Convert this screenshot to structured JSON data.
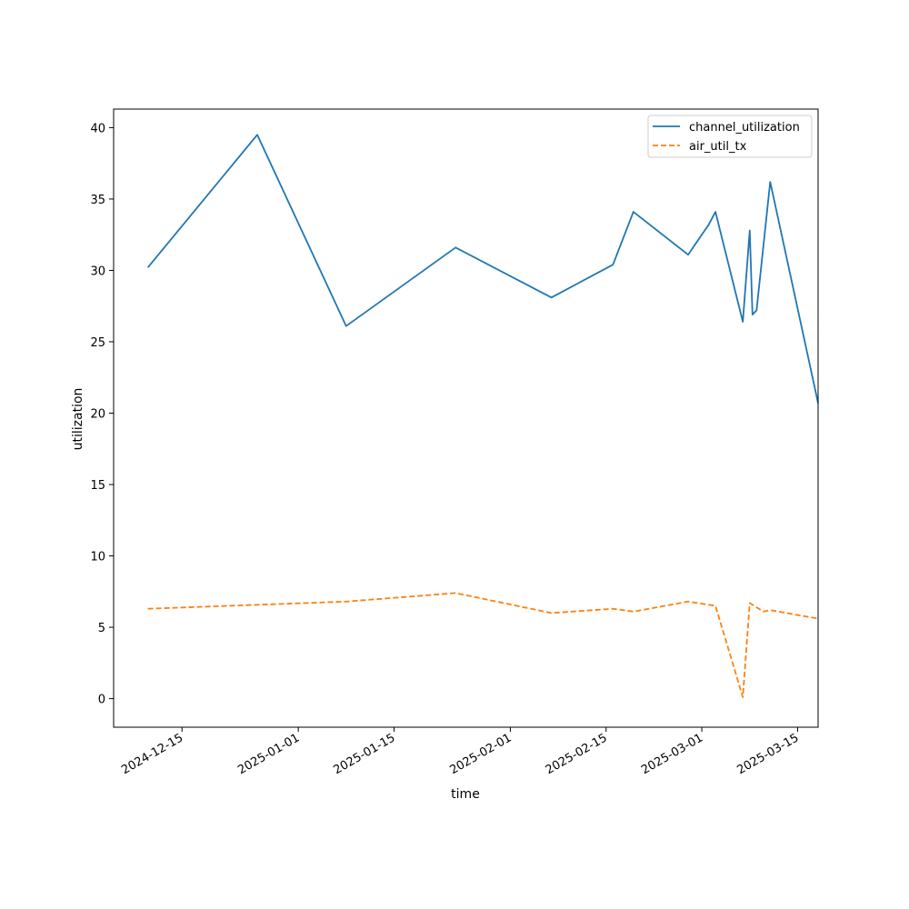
{
  "chart_data": {
    "type": "line",
    "title": "",
    "xlabel": "time",
    "ylabel": "utilization",
    "x_ticks": [
      "2024-12-15",
      "2025-01-01",
      "2025-01-15",
      "2025-02-01",
      "2025-02-15",
      "2025-03-01",
      "2025-03-15"
    ],
    "y_ticks": [
      0,
      5,
      10,
      15,
      20,
      25,
      30,
      35,
      40
    ],
    "xlim": [
      "2024-12-05",
      "2025-03-18"
    ],
    "ylim": [
      -2,
      41.3
    ],
    "grid": false,
    "legend_position": "top-right",
    "series": [
      {
        "name": "channel_utilization",
        "color": "#1f77b4",
        "style": "solid",
        "points": [
          {
            "x": "2024-12-10",
            "y": 30.2
          },
          {
            "x": "2024-12-26",
            "y": 39.5
          },
          {
            "x": "2025-01-08",
            "y": 26.1
          },
          {
            "x": "2025-01-24",
            "y": 31.6
          },
          {
            "x": "2025-02-07",
            "y": 28.1
          },
          {
            "x": "2025-02-16",
            "y": 30.4
          },
          {
            "x": "2025-02-19",
            "y": 34.1
          },
          {
            "x": "2025-02-27",
            "y": 31.1
          },
          {
            "x": "2025-03-02",
            "y": 33.2
          },
          {
            "x": "2025-03-03",
            "y": 34.1
          },
          {
            "x": "2025-03-07",
            "y": 26.4
          },
          {
            "x": "2025-03-08",
            "y": 32.8
          },
          {
            "x": "2025-03-08",
            "y": 26.9
          },
          {
            "x": "2025-03-09",
            "y": 27.2
          },
          {
            "x": "2025-03-11",
            "y": 36.2
          },
          {
            "x": "2025-03-18",
            "y": 20.7
          }
        ]
      },
      {
        "name": "air_util_tx",
        "color": "#ff7f0e",
        "style": "dashed",
        "points": [
          {
            "x": "2024-12-10",
            "y": 6.3
          },
          {
            "x": "2025-01-08",
            "y": 6.8
          },
          {
            "x": "2025-01-24",
            "y": 7.4
          },
          {
            "x": "2025-02-07",
            "y": 6.0
          },
          {
            "x": "2025-02-16",
            "y": 6.3
          },
          {
            "x": "2025-02-19",
            "y": 6.1
          },
          {
            "x": "2025-02-27",
            "y": 6.8
          },
          {
            "x": "2025-03-03",
            "y": 6.5
          },
          {
            "x": "2025-03-07",
            "y": 0.1
          },
          {
            "x": "2025-03-08",
            "y": 6.7
          },
          {
            "x": "2025-03-09",
            "y": 6.4
          },
          {
            "x": "2025-03-10",
            "y": 6.1
          },
          {
            "x": "2025-03-11",
            "y": 6.2
          },
          {
            "x": "2025-03-18",
            "y": 5.6
          }
        ]
      }
    ]
  }
}
